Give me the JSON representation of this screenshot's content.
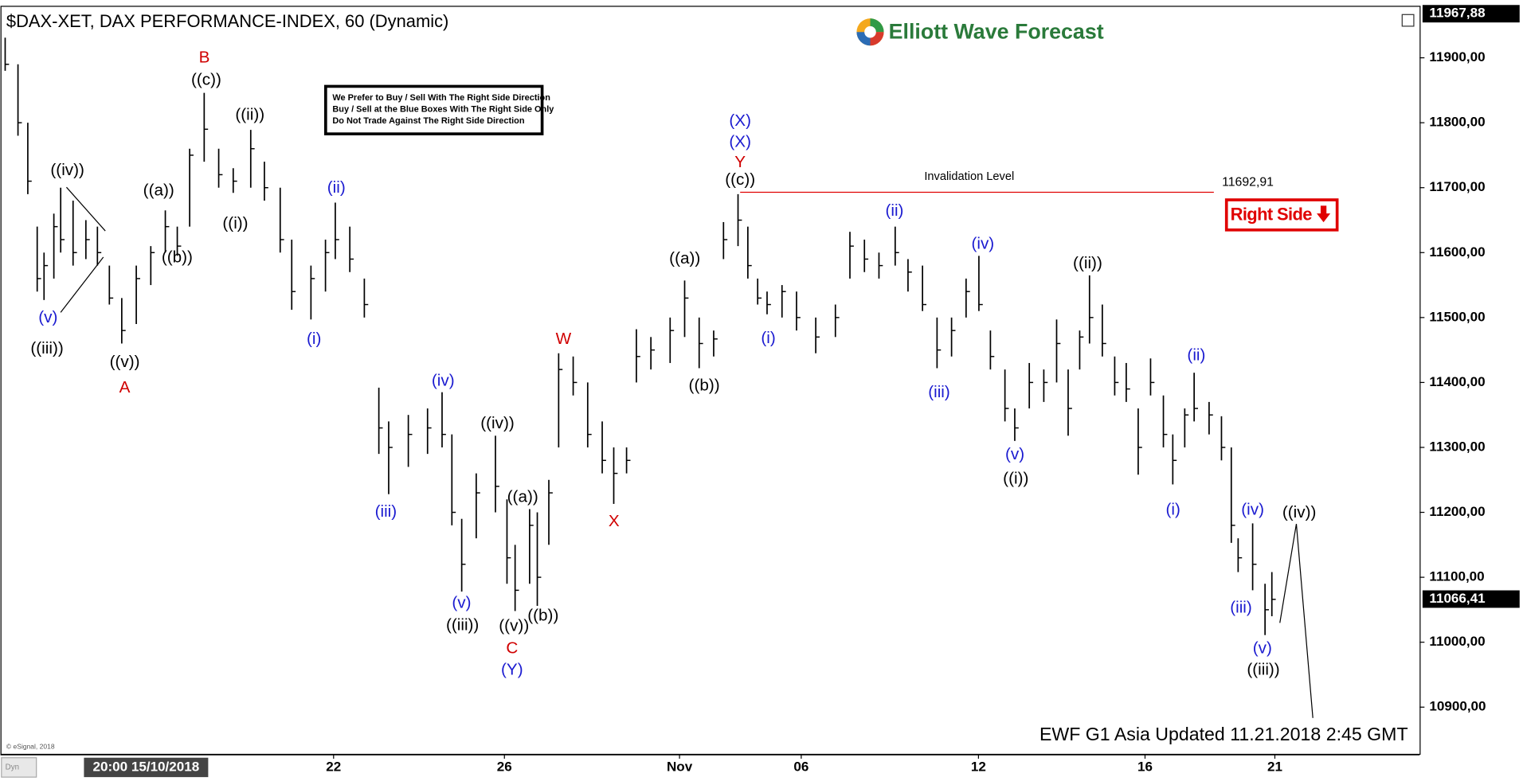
{
  "chart_data": {
    "type": "ohlc",
    "title": "$DAX-XET, DAX PERFORMANCE-INDEX, 60 (Dynamic)",
    "logo": "Elliott Wave Forecast",
    "notice": [
      "We Prefer to Buy / Sell With The Right Side Direction",
      "Buy / Sell at the Blue Boxes With The Right Side Only",
      "Do Not Trade Against The Right Side Direction"
    ],
    "right_side": "Right Side",
    "footer": "EWF G1 Asia Updated 11.21.2018 2:45 GMT",
    "copyright": "© eSignal, 2018",
    "corner": "Dyn",
    "cursor_label": "20:00 15/10/2018",
    "invalidation": {
      "text": "Invalidation Level",
      "level": {
        "value": 11692.91,
        "label": "11692,91"
      }
    },
    "high_label": {
      "value": 11967.88,
      "label": "11967,88"
    },
    "last_label": {
      "value": 11066.41,
      "label": "11066,41"
    },
    "color": "#000000",
    "x": [
      0.11,
      0.41,
      0.64,
      0.86,
      1.02,
      1.25,
      1.41,
      1.7,
      2.0,
      2.27,
      2.55,
      2.84,
      3.18,
      3.52,
      3.86,
      4.14,
      4.43,
      4.77,
      5.11,
      5.45,
      5.86,
      6.18,
      6.55,
      6.82,
      7.27,
      7.61,
      7.84,
      8.18,
      8.52,
      8.86,
      9.09,
      9.55,
      10.0,
      10.34,
      10.57,
      10.8,
      11.14,
      11.59,
      11.86,
      12.05,
      12.39,
      12.57,
      12.84,
      13.07,
      13.41,
      13.75,
      14.09,
      14.36,
      14.66,
      14.89,
      15.23,
      15.68,
      16.02,
      16.36,
      16.7,
      16.93,
      17.27,
      17.5,
      17.73,
      17.95,
      18.3,
      18.64,
      19.09,
      19.55,
      19.89,
      20.23,
      20.57,
      20.95,
      21.25,
      21.59,
      21.93,
      22.27,
      22.61,
      22.91,
      23.18,
      23.52,
      23.75,
      24.09,
      24.43,
      24.73,
      25.0,
      25.27,
      25.5,
      25.8,
      26.09,
      26.36,
      26.64,
      26.93,
      27.23,
      27.45,
      27.73,
      27.95,
      28.3,
      28.59,
      28.82,
      28.98,
      29.32,
      29.61,
      29.77
    ],
    "high": [
      11931,
      11890,
      11800,
      11640,
      11600,
      11660,
      11700,
      11680,
      11650,
      11640,
      11580,
      11530,
      11580,
      11610,
      11665,
      11640,
      11760,
      11846,
      11760,
      11730,
      11789,
      11740,
      11700,
      11620,
      11580,
      11620,
      11677,
      11640,
      11560,
      11392,
      11340,
      11350,
      11360,
      11385,
      11320,
      11190,
      11260,
      11318,
      11220,
      11150,
      11205,
      11200,
      11250,
      11445,
      11440,
      11400,
      11340,
      11300,
      11300,
      11482,
      11470,
      11500,
      11557,
      11500,
      11480,
      11647,
      11690,
      11640,
      11560,
      11540,
      11550,
      11540,
      11500,
      11520,
      11632,
      11620,
      11600,
      11640,
      11590,
      11580,
      11500,
      11500,
      11560,
      11595,
      11480,
      11420,
      11360,
      11430,
      11420,
      11497,
      11420,
      11480,
      11565,
      11520,
      11440,
      11430,
      11360,
      11437,
      11380,
      11320,
      11360,
      11415,
      11370,
      11348,
      11300,
      11160,
      11183,
      11090,
      11108
    ],
    "low": [
      11880,
      11780,
      11690,
      11540,
      11527,
      11560,
      11600,
      11580,
      11590,
      11580,
      11520,
      11460,
      11490,
      11550,
      11600,
      11595,
      11640,
      11740,
      11700,
      11692,
      11700,
      11680,
      11600,
      11512,
      11497,
      11540,
      11590,
      11570,
      11500,
      11290,
      11228,
      11270,
      11290,
      11300,
      11180,
      11078,
      11160,
      11200,
      11090,
      11048,
      11090,
      11056,
      11150,
      11300,
      11380,
      11300,
      11260,
      11213,
      11260,
      11400,
      11420,
      11430,
      11470,
      11422,
      11440,
      11590,
      11610,
      11560,
      11520,
      11505,
      11500,
      11480,
      11445,
      11470,
      11560,
      11570,
      11560,
      11580,
      11540,
      11510,
      11422,
      11440,
      11500,
      11510,
      11420,
      11340,
      11310,
      11360,
      11370,
      11400,
      11318,
      11420,
      11460,
      11440,
      11380,
      11370,
      11258,
      11380,
      11300,
      11243,
      11300,
      11340,
      11320,
      11280,
      11153,
      11108,
      11080,
      11011,
      11040
    ],
    "close": [
      11890,
      11800,
      11710,
      11560,
      11580,
      11640,
      11620,
      11600,
      11620,
      11600,
      11530,
      11480,
      11560,
      11600,
      11640,
      11610,
      11750,
      11790,
      11720,
      11710,
      11760,
      11700,
      11620,
      11540,
      11560,
      11600,
      11620,
      11590,
      11520,
      11330,
      11300,
      11320,
      11330,
      11320,
      11200,
      11120,
      11230,
      11240,
      11130,
      11080,
      11180,
      11100,
      11230,
      11420,
      11400,
      11320,
      11280,
      11260,
      11280,
      11440,
      11450,
      11480,
      11530,
      11460,
      11467,
      11620,
      11650,
      11580,
      11530,
      11520,
      11540,
      11500,
      11470,
      11500,
      11610,
      11590,
      11580,
      11600,
      11570,
      11520,
      11450,
      11480,
      11540,
      11520,
      11440,
      11360,
      11330,
      11400,
      11400,
      11460,
      11360,
      11470,
      11500,
      11460,
      11400,
      11390,
      11300,
      11400,
      11320,
      11280,
      11350,
      11360,
      11350,
      11300,
      11180,
      11130,
      11120,
      11050,
      11066
    ],
    "xlim": [
      0,
      33.23
    ],
    "xticks": [
      {
        "value": 7.8,
        "label": "22"
      },
      {
        "value": 11.8,
        "label": "26"
      },
      {
        "value": 15.9,
        "label": "Nov"
      },
      {
        "value": 18.75,
        "label": "06"
      },
      {
        "value": 22.9,
        "label": "12"
      },
      {
        "value": 26.8,
        "label": "16"
      },
      {
        "value": 29.84,
        "label": "21"
      }
    ],
    "ylim": [
      10826.6,
      11979.3
    ],
    "yticks": [
      {
        "value": 10900,
        "label": "10900,00"
      },
      {
        "value": 11000,
        "label": "11000,00"
      },
      {
        "value": 11100,
        "label": "11100,00"
      },
      {
        "value": 11200,
        "label": "11200,00"
      },
      {
        "value": 11300,
        "label": "11300,00"
      },
      {
        "value": 11400,
        "label": "11400,00"
      },
      {
        "value": 11500,
        "label": "11500,00"
      },
      {
        "value": 11600,
        "label": "11600,00"
      },
      {
        "value": 11700,
        "label": "11700,00"
      },
      {
        "value": 11800,
        "label": "11800,00"
      },
      {
        "value": 11900,
        "label": "11900,00"
      }
    ],
    "wave_labels": [
      {
        "text": "B",
        "color": "#d00000"
      },
      {
        "text": "((c))",
        "color": "#000000"
      },
      {
        "text": "((ii))",
        "color": "#000000"
      },
      {
        "text": "((a))",
        "color": "#000000"
      },
      {
        "text": "((i))",
        "color": "#000000"
      },
      {
        "text": "((b))",
        "color": "#000000"
      },
      {
        "text": "((iv))",
        "color": "#000000"
      },
      {
        "text": "(v)",
        "color": "#1a1ad0"
      },
      {
        "text": "((iii))",
        "color": "#000000"
      },
      {
        "text": "((v))",
        "color": "#000000"
      },
      {
        "text": "A",
        "color": "#d00000"
      },
      {
        "text": "(ii)",
        "color": "#1a1ad0"
      },
      {
        "text": "(i)",
        "color": "#1a1ad0"
      },
      {
        "text": "(iii)",
        "color": "#1a1ad0"
      },
      {
        "text": "(iv)",
        "color": "#1a1ad0"
      },
      {
        "text": "(v)",
        "color": "#1a1ad0"
      },
      {
        "text": "((iii))",
        "color": "#000000"
      },
      {
        "text": "((iv))",
        "color": "#000000"
      },
      {
        "text": "((a))",
        "color": "#000000"
      },
      {
        "text": "((v))",
        "color": "#000000"
      },
      {
        "text": "((b))",
        "color": "#000000"
      },
      {
        "text": "C",
        "color": "#d00000"
      },
      {
        "text": "(Y)",
        "color": "#1a1ad0"
      },
      {
        "text": "W",
        "color": "#d00000"
      },
      {
        "text": "X",
        "color": "#d00000"
      },
      {
        "text": "(X)",
        "color": "#1a1ad0"
      },
      {
        "text": "(X)",
        "color": "#1a1ad0"
      },
      {
        "text": "Y",
        "color": "#d00000"
      },
      {
        "text": "((c))",
        "color": "#000000"
      },
      {
        "text": "((a))",
        "color": "#000000"
      },
      {
        "text": "((b))",
        "color": "#000000"
      },
      {
        "text": "(i)",
        "color": "#1a1ad0"
      },
      {
        "text": "(ii)",
        "color": "#1a1ad0"
      },
      {
        "text": "(iii)",
        "color": "#1a1ad0"
      },
      {
        "text": "(iv)",
        "color": "#1a1ad0"
      },
      {
        "text": "(v)",
        "color": "#1a1ad0"
      },
      {
        "text": "((i))",
        "color": "#000000"
      },
      {
        "text": "((ii))",
        "color": "#000000"
      },
      {
        "text": "(i)",
        "color": "#1a1ad0"
      },
      {
        "text": "(ii)",
        "color": "#1a1ad0"
      },
      {
        "text": "(iv)",
        "color": "#1a1ad0"
      },
      {
        "text": "(iii)",
        "color": "#1a1ad0"
      },
      {
        "text": "(v)",
        "color": "#1a1ad0"
      },
      {
        "text": "((iii))",
        "color": "#000000"
      },
      {
        "text": "((iv))",
        "color": "#000000"
      }
    ]
  }
}
